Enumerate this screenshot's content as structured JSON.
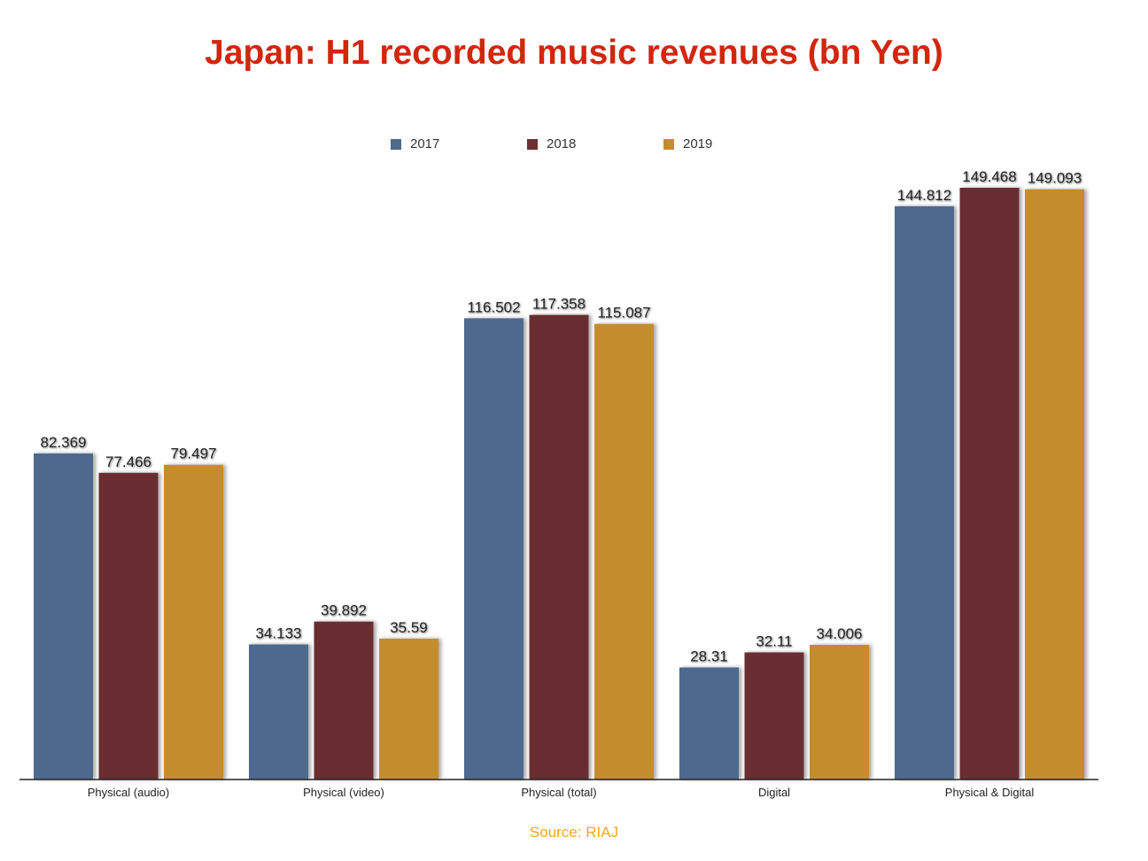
{
  "chart_data": {
    "type": "bar",
    "title": "Japan: H1 recorded music revenues (bn Yen)",
    "categories": [
      "Physical (audio)",
      "Physical (video)",
      "Physical (total)",
      "Digital",
      "Physical & Digital"
    ],
    "series": [
      {
        "name": "2017",
        "color": "#4d6a8e",
        "values": [
          82.369,
          34.133,
          116.502,
          28.31,
          144.812
        ]
      },
      {
        "name": "2018",
        "color": "#6b2e33",
        "values": [
          77.466,
          39.892,
          117.358,
          32.11,
          149.468
        ]
      },
      {
        "name": "2019",
        "color": "#c58c2f",
        "values": [
          79.497,
          35.59,
          115.087,
          34.006,
          149.093
        ]
      }
    ],
    "data_labels": [
      [
        "82.369",
        "34.133",
        "116.502",
        "28.31",
        "144.812"
      ],
      [
        "77.466",
        "39.892",
        "117.358",
        "32.11",
        "149.468"
      ],
      [
        "79.497",
        "35.59",
        "115.087",
        "34.006",
        "149.093"
      ]
    ],
    "xlabel": "",
    "ylabel": "",
    "y_axis_visible": false,
    "grid": false,
    "legend_position": "top"
  },
  "source": "Source: RIAJ"
}
